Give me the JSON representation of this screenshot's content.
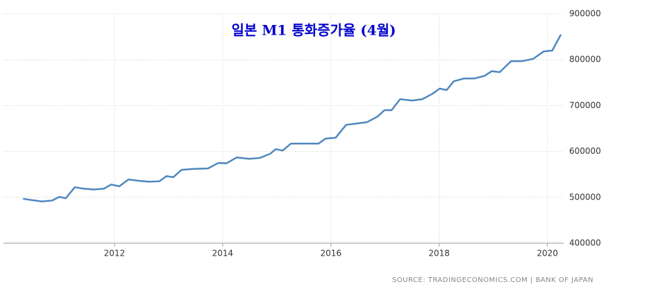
{
  "chart_data": {
    "type": "line",
    "title": "일본 M1 통화증가율 (4월)",
    "source": "SOURCE: TRADINGECONOMICS.COM | BANK OF JAPAN",
    "x": [
      2010.31,
      2010.47,
      2010.66,
      2010.85,
      2010.98,
      2011.1,
      2011.27,
      2011.42,
      2011.62,
      2011.81,
      2011.94,
      2012.09,
      2012.26,
      2012.45,
      2012.64,
      2012.83,
      2012.96,
      2013.09,
      2013.24,
      2013.47,
      2013.73,
      2013.92,
      2014.07,
      2014.26,
      2014.49,
      2014.69,
      2014.88,
      2014.98,
      2015.11,
      2015.26,
      2015.52,
      2015.77,
      2015.9,
      2016.09,
      2016.28,
      2016.48,
      2016.67,
      2016.86,
      2016.99,
      2017.12,
      2017.28,
      2017.5,
      2017.69,
      2017.88,
      2018.01,
      2018.14,
      2018.27,
      2018.46,
      2018.65,
      2018.84,
      2018.97,
      2019.12,
      2019.33,
      2019.54,
      2019.74,
      2019.93,
      2020.09,
      2020.25
    ],
    "values": [
      497000,
      494000,
      491000,
      493000,
      501000,
      498000,
      522000,
      519000,
      517000,
      519000,
      528000,
      524000,
      539000,
      536000,
      534000,
      535000,
      546000,
      544000,
      560000,
      562000,
      563000,
      575000,
      574000,
      587000,
      584000,
      586000,
      595000,
      605000,
      602000,
      617000,
      617000,
      617000,
      628000,
      630000,
      658000,
      661000,
      664000,
      676000,
      690000,
      690000,
      714000,
      711000,
      714000,
      726000,
      737000,
      734000,
      753000,
      759000,
      759000,
      765000,
      775000,
      773000,
      797000,
      797000,
      802000,
      818000,
      820000,
      855000
    ],
    "color": "#4f87bf",
    "xlim": [
      2009.95,
      2020.3
    ],
    "xticks": [
      2012,
      2014,
      2016,
      2018,
      2020
    ],
    "ylim": [
      400000,
      900000
    ],
    "yticks": [
      400000,
      500000,
      600000,
      700000,
      800000,
      900000
    ],
    "grid": true
  }
}
